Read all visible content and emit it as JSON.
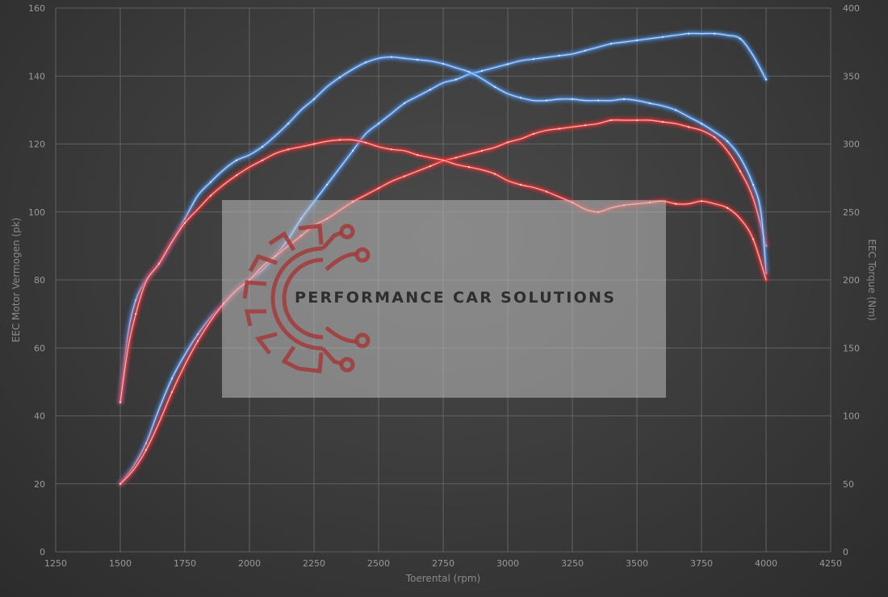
{
  "chart_data": {
    "type": "line",
    "xlabel": "Toerental (rpm)",
    "ylabel_left": "EEC Motor Vermogen (pk)",
    "ylabel_right": "EEC Torque (Nm)",
    "xlim": [
      1250,
      4250
    ],
    "ylim_left": [
      0,
      160
    ],
    "ylim_right": [
      0,
      400
    ],
    "x_ticks": [
      "1250",
      "1500",
      "1750",
      "2000",
      "2250",
      "2500",
      "2750",
      "3000",
      "3250",
      "3500",
      "3750",
      "4000",
      "4250"
    ],
    "y_ticks_left": [
      "0",
      "20",
      "40",
      "60",
      "80",
      "100",
      "120",
      "140",
      "160"
    ],
    "y_ticks_right": [
      "0",
      "50",
      "100",
      "150",
      "200",
      "250",
      "300",
      "350",
      "400"
    ],
    "grid": true,
    "series": [
      {
        "color": "#4f8fe6",
        "axis": "left",
        "points": [
          [
            1500,
            20
          ],
          [
            1550,
            25
          ],
          [
            1600,
            32
          ],
          [
            1650,
            42
          ],
          [
            1700,
            51
          ],
          [
            1750,
            58
          ],
          [
            1800,
            64
          ],
          [
            1850,
            69
          ],
          [
            1900,
            73
          ],
          [
            1950,
            77
          ],
          [
            2000,
            80
          ],
          [
            2050,
            83
          ],
          [
            2100,
            87
          ],
          [
            2150,
            92
          ],
          [
            2200,
            98
          ],
          [
            2250,
            103
          ],
          [
            2300,
            108
          ],
          [
            2350,
            113
          ],
          [
            2400,
            118
          ],
          [
            2450,
            123
          ],
          [
            2500,
            126
          ],
          [
            2550,
            129
          ],
          [
            2600,
            132
          ],
          [
            2650,
            134
          ],
          [
            2700,
            136
          ],
          [
            2750,
            138
          ],
          [
            2800,
            139
          ],
          [
            2850,
            140.5
          ],
          [
            2900,
            141.5
          ],
          [
            2950,
            142.5
          ],
          [
            3000,
            143.5
          ],
          [
            3050,
            144.5
          ],
          [
            3100,
            145
          ],
          [
            3150,
            145.5
          ],
          [
            3200,
            146
          ],
          [
            3250,
            146.5
          ],
          [
            3300,
            147.5
          ],
          [
            3350,
            148.5
          ],
          [
            3400,
            149.5
          ],
          [
            3450,
            150
          ],
          [
            3500,
            150.5
          ],
          [
            3550,
            151
          ],
          [
            3600,
            151.5
          ],
          [
            3650,
            152
          ],
          [
            3700,
            152.5
          ],
          [
            3750,
            152.5
          ],
          [
            3800,
            152.5
          ],
          [
            3850,
            152
          ],
          [
            3900,
            151
          ],
          [
            3950,
            146
          ],
          [
            4000,
            139
          ]
        ]
      },
      {
        "color": "#e83535",
        "axis": "left",
        "points": [
          [
            1500,
            20
          ],
          [
            1550,
            24
          ],
          [
            1600,
            30
          ],
          [
            1650,
            38
          ],
          [
            1700,
            47
          ],
          [
            1750,
            55
          ],
          [
            1800,
            62
          ],
          [
            1850,
            68
          ],
          [
            1900,
            73
          ],
          [
            1950,
            77
          ],
          [
            2000,
            80
          ],
          [
            2050,
            84
          ],
          [
            2100,
            87
          ],
          [
            2150,
            90
          ],
          [
            2200,
            93
          ],
          [
            2250,
            96
          ],
          [
            2300,
            98
          ],
          [
            2350,
            100.5
          ],
          [
            2400,
            103
          ],
          [
            2450,
            105
          ],
          [
            2500,
            107
          ],
          [
            2550,
            109
          ],
          [
            2600,
            110.5
          ],
          [
            2650,
            112
          ],
          [
            2700,
            113.5
          ],
          [
            2750,
            115
          ],
          [
            2800,
            116
          ],
          [
            2850,
            117
          ],
          [
            2900,
            118
          ],
          [
            2950,
            119
          ],
          [
            3000,
            120.5
          ],
          [
            3050,
            121.5
          ],
          [
            3100,
            123
          ],
          [
            3150,
            124
          ],
          [
            3200,
            124.5
          ],
          [
            3250,
            125
          ],
          [
            3300,
            125.5
          ],
          [
            3350,
            126
          ],
          [
            3400,
            127
          ],
          [
            3450,
            127
          ],
          [
            3500,
            127
          ],
          [
            3550,
            127
          ],
          [
            3600,
            126.5
          ],
          [
            3650,
            126
          ],
          [
            3700,
            125
          ],
          [
            3750,
            124
          ],
          [
            3800,
            122
          ],
          [
            3850,
            118
          ],
          [
            3900,
            112
          ],
          [
            3950,
            104
          ],
          [
            4000,
            90
          ]
        ]
      },
      {
        "color": "#4f8fe6",
        "axis": "right",
        "points": [
          [
            1500,
            110
          ],
          [
            1530,
            160
          ],
          [
            1560,
            185
          ],
          [
            1600,
            200
          ],
          [
            1650,
            212
          ],
          [
            1700,
            228
          ],
          [
            1750,
            245
          ],
          [
            1800,
            262
          ],
          [
            1850,
            272
          ],
          [
            1900,
            281
          ],
          [
            1950,
            288
          ],
          [
            2000,
            292
          ],
          [
            2050,
            298
          ],
          [
            2100,
            306
          ],
          [
            2150,
            315
          ],
          [
            2200,
            325
          ],
          [
            2250,
            333
          ],
          [
            2300,
            342
          ],
          [
            2350,
            349
          ],
          [
            2400,
            355
          ],
          [
            2450,
            360
          ],
          [
            2500,
            363
          ],
          [
            2550,
            364
          ],
          [
            2600,
            363
          ],
          [
            2650,
            362
          ],
          [
            2700,
            361
          ],
          [
            2750,
            359
          ],
          [
            2800,
            356
          ],
          [
            2850,
            353
          ],
          [
            2900,
            348
          ],
          [
            2950,
            342
          ],
          [
            3000,
            337
          ],
          [
            3050,
            334
          ],
          [
            3100,
            332
          ],
          [
            3150,
            332
          ],
          [
            3200,
            333
          ],
          [
            3250,
            333
          ],
          [
            3300,
            332
          ],
          [
            3350,
            332
          ],
          [
            3400,
            332
          ],
          [
            3450,
            333
          ],
          [
            3500,
            332
          ],
          [
            3550,
            330
          ],
          [
            3600,
            328
          ],
          [
            3650,
            325
          ],
          [
            3700,
            320
          ],
          [
            3750,
            315
          ],
          [
            3800,
            309
          ],
          [
            3850,
            302
          ],
          [
            3900,
            290
          ],
          [
            3950,
            270
          ],
          [
            3980,
            250
          ],
          [
            4000,
            205
          ]
        ]
      },
      {
        "color": "#e83535",
        "axis": "right",
        "points": [
          [
            1500,
            110
          ],
          [
            1530,
            150
          ],
          [
            1560,
            175
          ],
          [
            1600,
            199
          ],
          [
            1650,
            212
          ],
          [
            1700,
            228
          ],
          [
            1750,
            242
          ],
          [
            1800,
            252
          ],
          [
            1850,
            262
          ],
          [
            1900,
            270
          ],
          [
            1950,
            277
          ],
          [
            2000,
            283
          ],
          [
            2050,
            288
          ],
          [
            2100,
            293
          ],
          [
            2150,
            296
          ],
          [
            2200,
            298
          ],
          [
            2250,
            300
          ],
          [
            2300,
            302
          ],
          [
            2350,
            303
          ],
          [
            2400,
            303
          ],
          [
            2450,
            301
          ],
          [
            2500,
            298
          ],
          [
            2550,
            296
          ],
          [
            2600,
            295
          ],
          [
            2650,
            292
          ],
          [
            2700,
            290
          ],
          [
            2750,
            288
          ],
          [
            2800,
            285
          ],
          [
            2850,
            283
          ],
          [
            2900,
            281
          ],
          [
            2950,
            278
          ],
          [
            3000,
            273
          ],
          [
            3050,
            270
          ],
          [
            3100,
            268
          ],
          [
            3150,
            265
          ],
          [
            3200,
            261
          ],
          [
            3250,
            257
          ],
          [
            3300,
            252
          ],
          [
            3350,
            250
          ],
          [
            3400,
            253
          ],
          [
            3450,
            255
          ],
          [
            3500,
            256
          ],
          [
            3550,
            257
          ],
          [
            3600,
            258
          ],
          [
            3650,
            256
          ],
          [
            3700,
            256
          ],
          [
            3750,
            258
          ],
          [
            3800,
            256
          ],
          [
            3850,
            253
          ],
          [
            3900,
            245
          ],
          [
            3950,
            230
          ],
          [
            4000,
            200
          ]
        ]
      }
    ]
  },
  "watermark": {
    "text": "PERFORMANCE CAR SOLUTIONS",
    "logo_color": "#a3393a"
  }
}
